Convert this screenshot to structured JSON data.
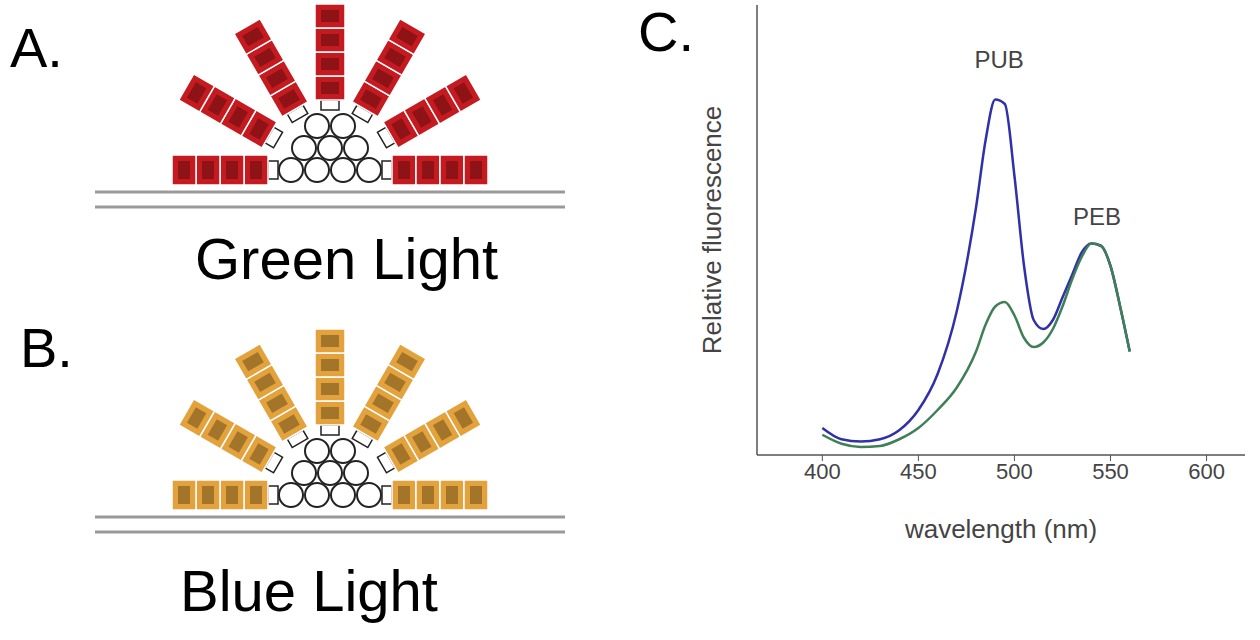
{
  "panels": [
    {
      "letter": "A.",
      "caption": "Green Light",
      "color": "#c41a20"
    },
    {
      "letter": "B.",
      "caption": "Blue Light",
      "color": "#e3a23c"
    }
  ],
  "chart_data": {
    "letter": "C.",
    "type": "line",
    "x_label": "wavelength (nm)",
    "y_label": "Relative fluorescence",
    "x": [
      400,
      410,
      420,
      430,
      440,
      450,
      460,
      470,
      480,
      485,
      490,
      495,
      500,
      505,
      510,
      515,
      520,
      525,
      530,
      535,
      540,
      545,
      550,
      555,
      560
    ],
    "series": [
      {
        "color": "#3030a8",
        "values": [
          0.06,
          0.035,
          0.03,
          0.035,
          0.055,
          0.1,
          0.18,
          0.32,
          0.55,
          0.7,
          0.79,
          0.78,
          0.62,
          0.42,
          0.3,
          0.28,
          0.3,
          0.35,
          0.4,
          0.45,
          0.47,
          0.465,
          0.42,
          0.33,
          0.23
        ]
      },
      {
        "color": "#3f7f55",
        "values": [
          0.045,
          0.025,
          0.018,
          0.02,
          0.035,
          0.06,
          0.1,
          0.15,
          0.23,
          0.29,
          0.33,
          0.34,
          0.31,
          0.26,
          0.24,
          0.25,
          0.28,
          0.33,
          0.39,
          0.44,
          0.47,
          0.465,
          0.42,
          0.33,
          0.23
        ]
      }
    ],
    "xlim": [
      366,
      620
    ],
    "xticks": [
      400,
      450,
      500,
      550,
      600
    ],
    "ylim": [
      0,
      1
    ],
    "tick_labels": "x",
    "annotations": [
      {
        "text": "PUB",
        "x": 492,
        "y": 0.88
      },
      {
        "text": "PEB",
        "x": 543,
        "y": 0.53
      }
    ]
  }
}
